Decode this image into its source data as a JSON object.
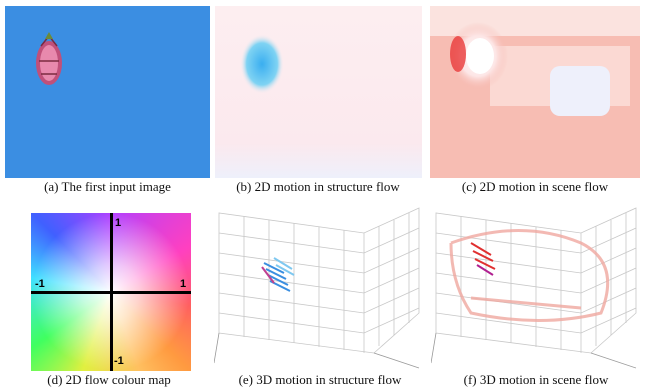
{
  "panels": [
    {
      "caption": "(a) The first input image"
    },
    {
      "caption": "(b) 2D motion in structure flow"
    },
    {
      "caption": "(c) 2D motion in scene flow"
    },
    {
      "caption": "(d) 2D flow colour map"
    },
    {
      "caption": "(e) 3D motion in structure flow"
    },
    {
      "caption": "(f) 3D motion in scene flow"
    }
  ],
  "colour_map": {
    "axis_labels": {
      "top": "1",
      "left": "-1",
      "right": "1",
      "bottom": "-1"
    }
  }
}
